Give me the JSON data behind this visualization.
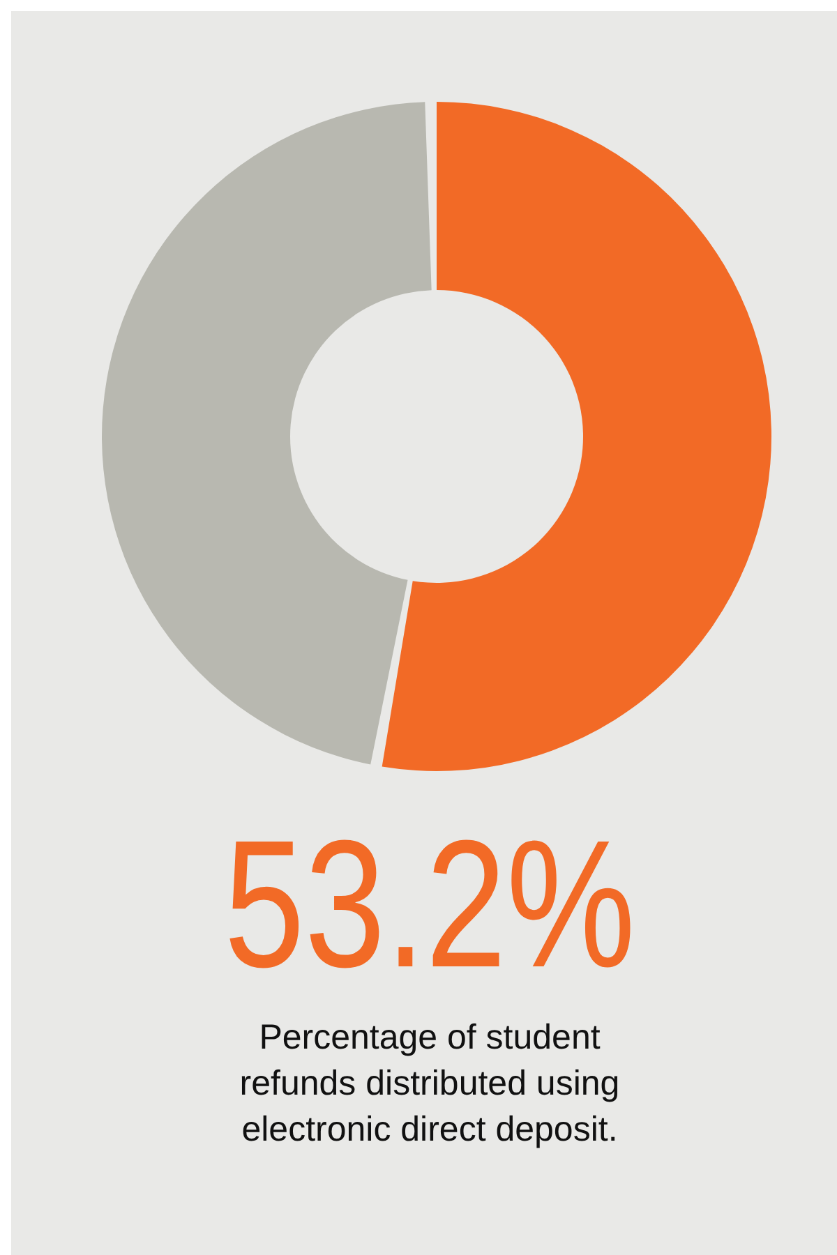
{
  "chart_data": {
    "type": "donut",
    "categories": [
      null,
      null
    ],
    "values": [
      53.2,
      46.8
    ],
    "colors": [
      "#f26a26",
      "#b8b8b0"
    ],
    "value_labels": [
      "53.2%",
      null
    ],
    "annotations": [
      "Percentage of student refunds distributed using electronic direct deposit."
    ]
  }
}
